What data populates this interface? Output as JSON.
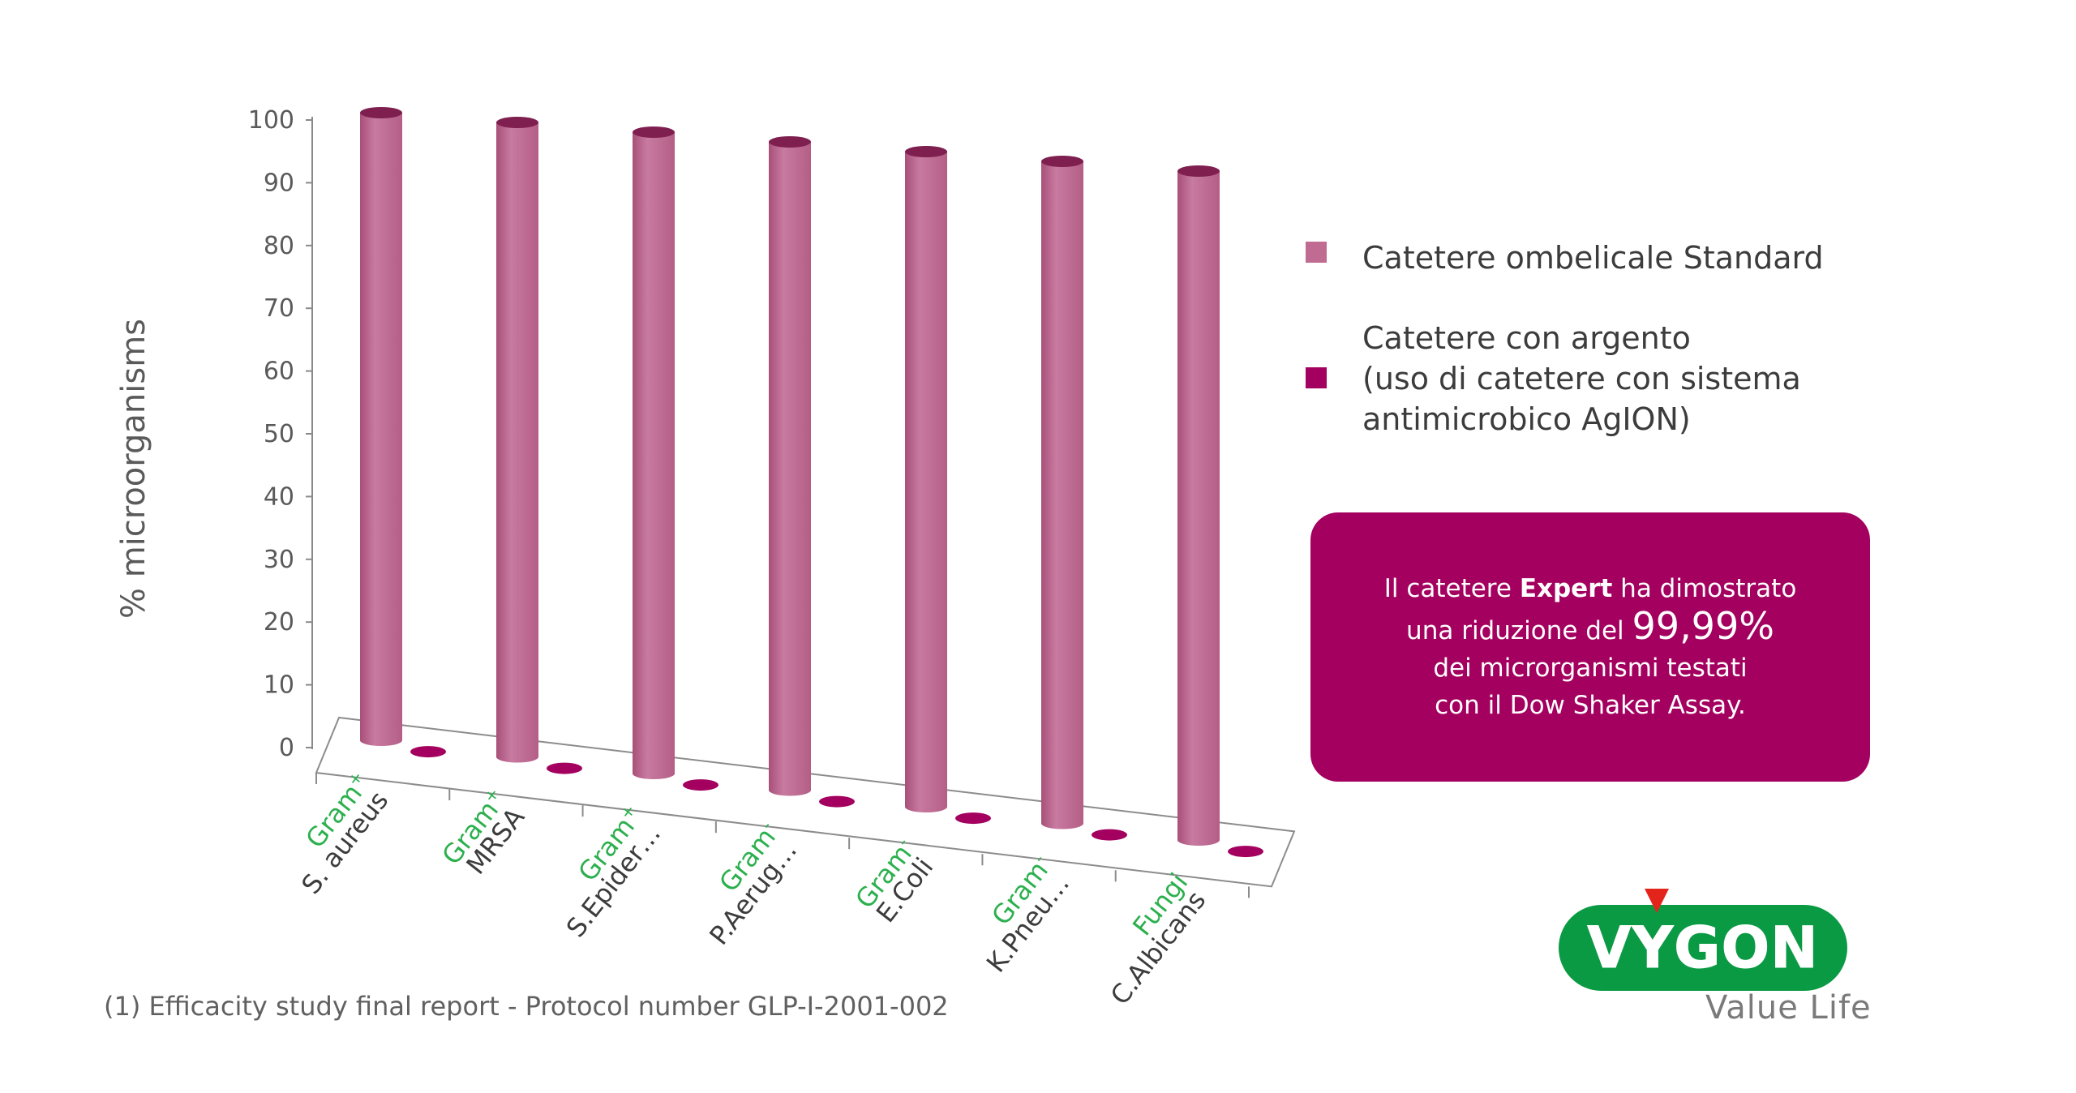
{
  "chart_data": {
    "type": "bar",
    "ylabel": "% microorganisms",
    "ylim": [
      0,
      100
    ],
    "yticks": [
      "0",
      "10",
      "20",
      "30",
      "40",
      "50",
      "60",
      "70",
      "80",
      "90",
      "100"
    ],
    "categories": [
      {
        "group": "Gram",
        "sup": "+",
        "name": "S. aureus"
      },
      {
        "group": "Gram",
        "sup": "+",
        "name": "MRSA"
      },
      {
        "group": "Gram",
        "sup": "+",
        "name": "S.Epider…"
      },
      {
        "group": "Gram",
        "sup": "-",
        "name": "P.Aerug…"
      },
      {
        "group": "Gram",
        "sup": "-",
        "name": "E.Coli"
      },
      {
        "group": "Gram",
        "sup": "-",
        "name": "K.Pneu…"
      },
      {
        "group": "Fungi",
        "sup": "",
        "name": "C.Albicans"
      }
    ],
    "series": [
      {
        "name": "Catetere ombelicale Standard",
        "values": [
          100,
          100,
          100,
          100,
          100,
          100,
          100
        ]
      },
      {
        "name": "Catetere con argento (uso di catetere con sistema antimicrobico AgION)",
        "values": [
          0.01,
          0.01,
          0.01,
          0.01,
          0.01,
          0.01,
          0.01
        ]
      }
    ],
    "grid": false,
    "legend_position": "right"
  },
  "legend": {
    "standard": "Catetere ombelicale Standard",
    "silver_lines": [
      "Catetere con argento",
      "(uso di catetere con sistema",
      "antimicrobico AgION)"
    ]
  },
  "callout": {
    "line1_pre": "Il catetere ",
    "line1_bold": "Expert",
    "line1_post": " ha dimostrato",
    "line2_pre": "una riduzione del ",
    "line2_big": "99,99%",
    "line3": "dei microrganismi testati",
    "line4": "con il Dow Shaker Assay."
  },
  "footnote": "(1) Efficacity study final report  - Protocol number GLP-I-2001-002",
  "logo": {
    "word": "VYGON",
    "tagline": "Value Life"
  },
  "colors": {
    "standard_bar": "#c06b92",
    "silver_bar": "#a3005f",
    "callout_bg": "#a3005f",
    "group_label": "#2cb04e",
    "logo_green": "#0a9a44",
    "logo_red": "#e3241b"
  }
}
